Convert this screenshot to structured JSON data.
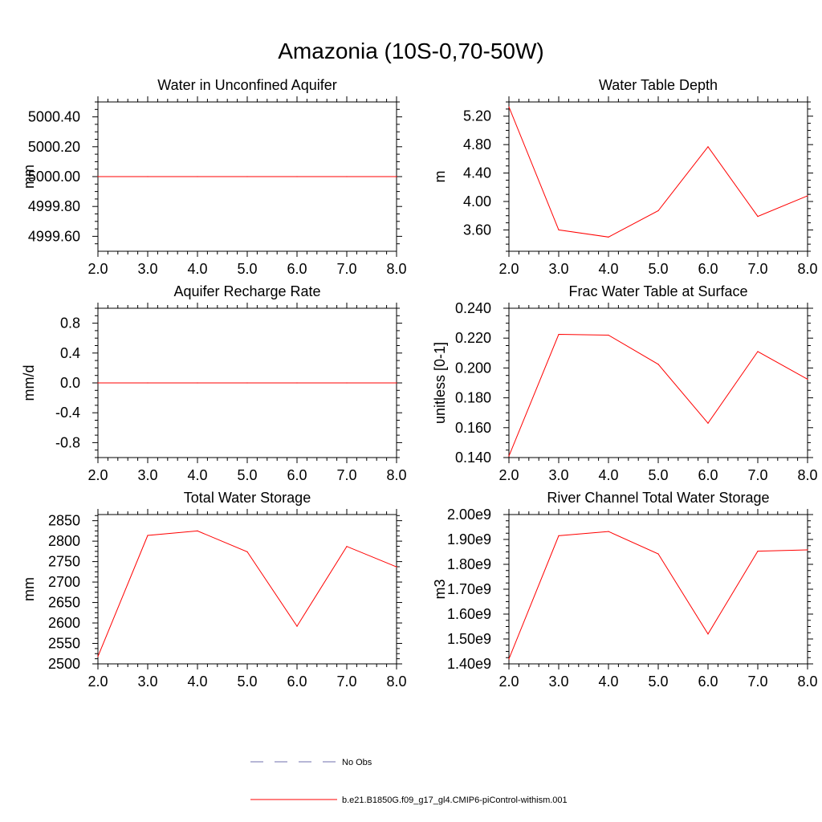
{
  "figure": {
    "title": "Amazonia (10S-0,70-50W)"
  },
  "legend": {
    "items": [
      {
        "label": "No Obs",
        "style": "dashed",
        "color": "#6f6fae"
      },
      {
        "label": "b.e21.B1850G.f09_g17_gl4.CMIP6-piControl-withism.001",
        "style": "solid",
        "color": "#ff0000"
      }
    ]
  },
  "chart_data": [
    {
      "type": "line",
      "title": "Water in Unconfined Aquifer",
      "xlabel": "",
      "ylabel": "mm",
      "xlim": [
        2.0,
        8.0
      ],
      "ylim": [
        4999.5,
        5000.5
      ],
      "xticks": [
        "2.0",
        "3.0",
        "4.0",
        "5.0",
        "6.0",
        "7.0",
        "8.0"
      ],
      "yticks": [
        {
          "value": 4999.6,
          "label": "4999.60"
        },
        {
          "value": 4999.8,
          "label": "4999.80"
        },
        {
          "value": 5000.0,
          "label": "5000.00"
        },
        {
          "value": 5000.2,
          "label": "5000.20"
        },
        {
          "value": 5000.4,
          "label": "5000.40"
        }
      ],
      "series": [
        {
          "color": "#ff0000",
          "x": [
            2.0,
            3.0,
            4.0,
            5.0,
            6.0,
            7.0,
            8.0
          ],
          "y": [
            5000.0,
            5000.0,
            5000.0,
            5000.0,
            5000.0,
            5000.0,
            5000.0
          ]
        }
      ]
    },
    {
      "type": "line",
      "title": "Water Table Depth",
      "xlabel": "",
      "ylabel": "m",
      "xlim": [
        2.0,
        8.0
      ],
      "ylim": [
        3.3,
        5.4
      ],
      "xticks": [
        "2.0",
        "3.0",
        "4.0",
        "5.0",
        "6.0",
        "7.0",
        "8.0"
      ],
      "yticks": [
        {
          "value": 3.6,
          "label": "3.60"
        },
        {
          "value": 4.0,
          "label": "4.00"
        },
        {
          "value": 4.4,
          "label": "4.40"
        },
        {
          "value": 4.8,
          "label": "4.80"
        },
        {
          "value": 5.2,
          "label": "5.20"
        }
      ],
      "series": [
        {
          "color": "#ff0000",
          "x": [
            2.0,
            3.0,
            4.0,
            5.0,
            6.0,
            7.0,
            8.0
          ],
          "y": [
            5.33,
            3.6,
            3.5,
            3.87,
            4.77,
            3.79,
            4.08
          ]
        }
      ]
    },
    {
      "type": "line",
      "title": "Aquifer Recharge Rate",
      "xlabel": "",
      "ylabel": "mm/d",
      "xlim": [
        2.0,
        8.0
      ],
      "ylim": [
        -1.0,
        1.0
      ],
      "xticks": [
        "2.0",
        "3.0",
        "4.0",
        "5.0",
        "6.0",
        "7.0",
        "8.0"
      ],
      "yticks": [
        {
          "value": -0.8,
          "label": "-0.8"
        },
        {
          "value": -0.4,
          "label": "-0.4"
        },
        {
          "value": 0.0,
          "label": "0.0"
        },
        {
          "value": 0.4,
          "label": "0.4"
        },
        {
          "value": 0.8,
          "label": "0.8"
        }
      ],
      "series": [
        {
          "color": "#ff0000",
          "x": [
            2.0,
            3.0,
            4.0,
            5.0,
            6.0,
            7.0,
            8.0
          ],
          "y": [
            0.0,
            0.0,
            0.0,
            0.0,
            0.0,
            0.0,
            0.0
          ]
        }
      ]
    },
    {
      "type": "line",
      "title": "Frac Water Table at Surface",
      "xlabel": "",
      "ylabel": "unitless [0-1]",
      "xlim": [
        2.0,
        8.0
      ],
      "ylim": [
        0.14,
        0.24
      ],
      "xticks": [
        "2.0",
        "3.0",
        "4.0",
        "5.0",
        "6.0",
        "7.0",
        "8.0"
      ],
      "yticks": [
        {
          "value": 0.14,
          "label": "0.140"
        },
        {
          "value": 0.16,
          "label": "0.160"
        },
        {
          "value": 0.18,
          "label": "0.180"
        },
        {
          "value": 0.2,
          "label": "0.200"
        },
        {
          "value": 0.22,
          "label": "0.220"
        },
        {
          "value": 0.24,
          "label": "0.240"
        }
      ],
      "series": [
        {
          "color": "#ff0000",
          "x": [
            2.0,
            3.0,
            4.0,
            5.0,
            6.0,
            7.0,
            8.0
          ],
          "y": [
            0.141,
            0.2225,
            0.222,
            0.2025,
            0.163,
            0.211,
            0.1925
          ]
        }
      ]
    },
    {
      "type": "line",
      "title": "Total Water Storage",
      "xlabel": "",
      "ylabel": "mm",
      "xlim": [
        2.0,
        8.0
      ],
      "ylim": [
        2500,
        2865
      ],
      "xticks": [
        "2.0",
        "3.0",
        "4.0",
        "5.0",
        "6.0",
        "7.0",
        "8.0"
      ],
      "yticks": [
        {
          "value": 2500,
          "label": "2500"
        },
        {
          "value": 2550,
          "label": "2550"
        },
        {
          "value": 2600,
          "label": "2600"
        },
        {
          "value": 2650,
          "label": "2650"
        },
        {
          "value": 2700,
          "label": "2700"
        },
        {
          "value": 2750,
          "label": "2750"
        },
        {
          "value": 2800,
          "label": "2800"
        },
        {
          "value": 2850,
          "label": "2850"
        }
      ],
      "series": [
        {
          "color": "#ff0000",
          "x": [
            2.0,
            3.0,
            4.0,
            5.0,
            6.0,
            7.0,
            8.0
          ],
          "y": [
            2518,
            2814,
            2825,
            2774,
            2592,
            2787,
            2737
          ]
        }
      ]
    },
    {
      "type": "line",
      "title": "River Channel Total Water Storage",
      "xlabel": "",
      "ylabel": "m3",
      "xlim": [
        2.0,
        8.0
      ],
      "ylim": [
        1400000000.0,
        2000000000.0
      ],
      "xticks": [
        "2.0",
        "3.0",
        "4.0",
        "5.0",
        "6.0",
        "7.0",
        "8.0"
      ],
      "yticks": [
        {
          "value": 1400000000.0,
          "label": "1.40e9"
        },
        {
          "value": 1500000000.0,
          "label": "1.50e9"
        },
        {
          "value": 1600000000.0,
          "label": "1.60e9"
        },
        {
          "value": 1700000000.0,
          "label": "1.70e9"
        },
        {
          "value": 1800000000.0,
          "label": "1.80e9"
        },
        {
          "value": 1900000000.0,
          "label": "1.90e9"
        },
        {
          "value": 2000000000.0,
          "label": "2.00e9"
        }
      ],
      "series": [
        {
          "color": "#ff0000",
          "x": [
            2.0,
            3.0,
            4.0,
            5.0,
            6.0,
            7.0,
            8.0
          ],
          "y": [
            1420000000.0,
            1915000000.0,
            1932000000.0,
            1842000000.0,
            1520000000.0,
            1853000000.0,
            1858000000.0
          ]
        }
      ]
    }
  ]
}
